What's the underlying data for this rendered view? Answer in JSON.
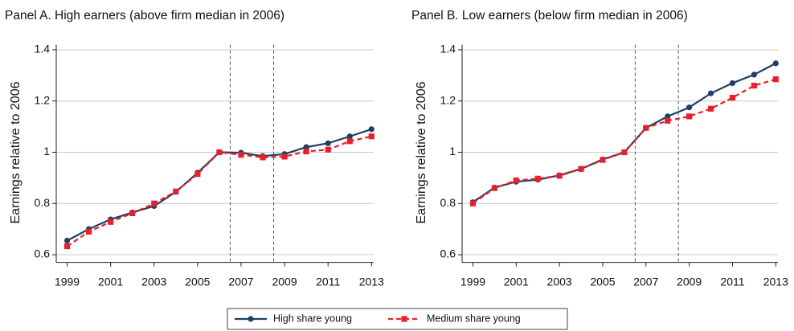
{
  "chart_data": [
    {
      "type": "line",
      "title": "Panel A. High earners (above firm median in 2006)",
      "y_label": "Earnings relative to 2006",
      "x": [
        1999,
        2000,
        2001,
        2002,
        2003,
        2004,
        2005,
        2006,
        2007,
        2008,
        2009,
        2010,
        2011,
        2012,
        2013
      ],
      "series": [
        {
          "name": "High share young",
          "color": "#1f3f66",
          "dash": false,
          "marker": "circle",
          "values": [
            0.655,
            0.7,
            0.738,
            0.765,
            0.79,
            0.845,
            0.92,
            1.0,
            0.998,
            0.985,
            0.993,
            1.02,
            1.035,
            1.062,
            1.09
          ]
        },
        {
          "name": "Medium share young",
          "color": "#e8202a",
          "dash": true,
          "marker": "square",
          "values": [
            0.633,
            0.69,
            0.728,
            0.762,
            0.8,
            0.847,
            0.915,
            1.0,
            0.99,
            0.98,
            0.983,
            1.003,
            1.01,
            1.043,
            1.062
          ]
        }
      ],
      "xlim": [
        1998.5,
        2013.1
      ],
      "xticks": [
        1999,
        2001,
        2003,
        2005,
        2007,
        2009,
        2011,
        2013
      ],
      "ylim": [
        0.57,
        1.42
      ],
      "yticks": [
        0.6,
        0.8,
        1,
        1.2,
        1.4
      ],
      "grid": true,
      "vlines": [
        2006.5,
        2008.5
      ],
      "legend": "bottom"
    },
    {
      "type": "line",
      "title": "Panel B. Low earners (below firm median in 2006)",
      "y_label": "Earnings relative to 2006",
      "x": [
        1999,
        2000,
        2001,
        2002,
        2003,
        2004,
        2005,
        2006,
        2007,
        2008,
        2009,
        2010,
        2011,
        2012,
        2013
      ],
      "series": [
        {
          "color": "#1f3f66",
          "dash": false,
          "marker": "circle",
          "values": [
            0.805,
            0.862,
            0.885,
            0.893,
            0.91,
            0.935,
            0.972,
            1.0,
            1.095,
            1.14,
            1.175,
            1.23,
            1.27,
            1.303,
            1.347
          ]
        },
        {
          "color": "#e8202a",
          "dash": true,
          "marker": "square",
          "values": [
            0.8,
            0.86,
            0.89,
            0.897,
            0.908,
            0.935,
            0.97,
            1.0,
            1.095,
            1.123,
            1.14,
            1.17,
            1.213,
            1.26,
            1.285
          ]
        }
      ],
      "xlim": [
        1998.5,
        2013.1
      ],
      "xticks": [
        1999,
        2001,
        2003,
        2005,
        2007,
        2009,
        2011,
        2013
      ],
      "ylim": [
        0.57,
        1.42
      ],
      "yticks": [
        0.6,
        0.8,
        1,
        1.2,
        1.4
      ],
      "grid": true,
      "vlines": [
        2006.5,
        2008.5
      ]
    }
  ]
}
